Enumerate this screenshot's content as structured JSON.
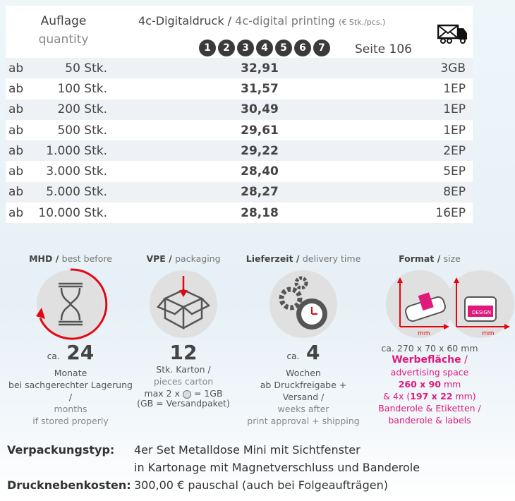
{
  "header": {
    "auflage": "Auflage",
    "quantity": "quantity",
    "title_de": "4c-Digitaldruck",
    "title_sep": " / ",
    "title_en": "4c-digital printing",
    "unit": "(€ Stk./pcs.)",
    "numbers": [
      "1",
      "2",
      "3",
      "4",
      "5",
      "6",
      "7"
    ],
    "seite": "Seite 106",
    "shipping_icon": "mail-truck-icon"
  },
  "rows": [
    {
      "ab": "ab",
      "qty": "50 Stk.",
      "price": "32,91",
      "ship": "3GB"
    },
    {
      "ab": "ab",
      "qty": "100 Stk.",
      "price": "31,57",
      "ship": "1EP"
    },
    {
      "ab": "ab",
      "qty": "200 Stk.",
      "price": "30,49",
      "ship": "1EP"
    },
    {
      "ab": "ab",
      "qty": "500 Stk.",
      "price": "29,61",
      "ship": "1EP"
    },
    {
      "ab": "ab",
      "qty": "1.000 Stk.",
      "price": "29,22",
      "ship": "2EP"
    },
    {
      "ab": "ab",
      "qty": "3.000 Stk.",
      "price": "28,40",
      "ship": "5EP"
    },
    {
      "ab": "ab",
      "qty": "5.000 Stk.",
      "price": "28,27",
      "ship": "8EP"
    },
    {
      "ab": "ab",
      "qty": "10.000 Stk.",
      "price": "28,18",
      "ship": "16EP"
    }
  ],
  "features": {
    "mhd": {
      "title": "MHD /",
      "title_en": "best before",
      "ca": "ca.",
      "value": "24",
      "l1": "Monate",
      "l2": "bei sachgerechter Lagerung /",
      "l3": "months",
      "l4": "if stored properly"
    },
    "vpe": {
      "title": "VPE /",
      "title_en": "packaging",
      "value": "12",
      "l1": "Stk. Karton /",
      "l2": "pieces carton",
      "l3a": "max 2 x",
      "l3b": "= 1GB",
      "l4": "(GB = Versandpaket)"
    },
    "lief": {
      "title": "Lieferzeit /",
      "title_en": "delivery time",
      "ca": "ca.",
      "value": "4",
      "l1": "Wochen",
      "l2": "ab Druckfreigabe + Versand /",
      "l3": "weeks after",
      "l4": "print approval + shipping"
    },
    "format": {
      "title": "Format /",
      "title_en": "size",
      "mm": "mm",
      "design": "DESIGN",
      "size_ca": "ca.",
      "size": "270 x 70 x 60",
      "size_unit": "mm",
      "wf": "Werbefläche",
      "wf_sep": " /",
      "l1": "advertising space",
      "l2": "260 x 90",
      "l2u": " mm",
      "l3a": "& 4x (",
      "l3b": "197 x 22",
      "l3c": " mm)",
      "l4": "Banderole & Etiketten /",
      "l5": "banderole & labels"
    }
  },
  "bottom": {
    "vt_label": "Verpackungstyp:",
    "vt_1": "4er Set Metalldose Mini mit Sichtfenster",
    "vt_2": "in Kartonage mit Magnetverschluss und Banderole",
    "dk_label": "Drucknebenkosten:",
    "dk": "300,00 € pauschal (auch bei Folgeaufträgen)"
  },
  "colors": {
    "accent": "#e0197d",
    "red": "#e30613"
  }
}
